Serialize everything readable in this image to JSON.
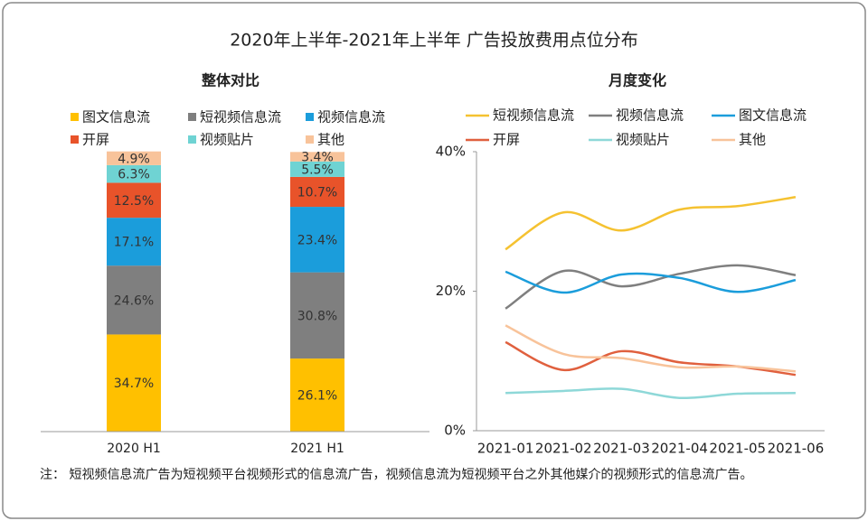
{
  "title": "2020年上半年-2021年上半年 广告投放费用点位分布",
  "note": "注： 短视频信息流广告为短视频平台视频形式的信息流广告，视频信息流为短视频平台之外其他媒介的视频形式的信息流广告。",
  "chart_data": [
    {
      "type": "bar",
      "stacked": true,
      "title": "整体对比",
      "categories": [
        "2020 H1",
        "2021 H1"
      ],
      "ylim": [
        0,
        100
      ],
      "series": [
        {
          "name": "图文信息流",
          "color": "#ffc000",
          "values": [
            34.7,
            26.1
          ],
          "value_labels": [
            "34.7%",
            "26.1%"
          ]
        },
        {
          "name": "短视频信息流",
          "color": "#7f7f7f",
          "values": [
            24.6,
            30.8
          ],
          "value_labels": [
            "24.6%",
            "30.8%"
          ]
        },
        {
          "name": "视频信息流",
          "color": "#1b9ddb",
          "values": [
            17.1,
            23.4
          ],
          "value_labels": [
            "17.1%",
            "23.4%"
          ]
        },
        {
          "name": "开屏",
          "color": "#e8532a",
          "values": [
            12.5,
            10.7
          ],
          "value_labels": [
            "12.5%",
            "10.7%"
          ]
        },
        {
          "name": "视频贴片",
          "color": "#6fd3d3",
          "values": [
            6.3,
            5.5
          ],
          "value_labels": [
            "6.3%",
            "5.5%"
          ]
        },
        {
          "name": "其他",
          "color": "#f8c39a",
          "values": [
            4.9,
            3.4
          ],
          "value_labels": [
            "4.9%",
            "3.4%"
          ]
        }
      ]
    },
    {
      "type": "line",
      "smooth": true,
      "title": "月度变化",
      "categories": [
        "2021-01",
        "2021-02",
        "2021-03",
        "2021-04",
        "2021-05",
        "2021-06"
      ],
      "ylim": [
        0,
        40
      ],
      "yticks": [
        {
          "value": 0,
          "label": "0%"
        },
        {
          "value": 20,
          "label": "20%"
        },
        {
          "value": 40,
          "label": "40%"
        }
      ],
      "series": [
        {
          "name": "短视频信息流",
          "color": "#f5c231",
          "values": [
            26.0,
            31.3,
            28.7,
            31.7,
            32.2,
            33.5
          ]
        },
        {
          "name": "视频信息流",
          "color": "#7f7f7f",
          "values": [
            17.5,
            22.9,
            20.7,
            22.5,
            23.7,
            22.3
          ]
        },
        {
          "name": "图文信息流",
          "color": "#1b9ddb",
          "values": [
            22.8,
            19.8,
            22.4,
            21.9,
            19.9,
            21.6
          ]
        },
        {
          "name": "开屏",
          "color": "#e0603e",
          "values": [
            12.7,
            8.7,
            11.4,
            9.8,
            9.2,
            8.0
          ]
        },
        {
          "name": "视频贴片",
          "color": "#8ed8d8",
          "values": [
            5.4,
            5.7,
            6.0,
            4.7,
            5.3,
            5.4
          ]
        },
        {
          "name": "其他",
          "color": "#f8c39a",
          "values": [
            15.1,
            11.0,
            10.4,
            9.1,
            9.2,
            8.5
          ]
        }
      ]
    }
  ]
}
